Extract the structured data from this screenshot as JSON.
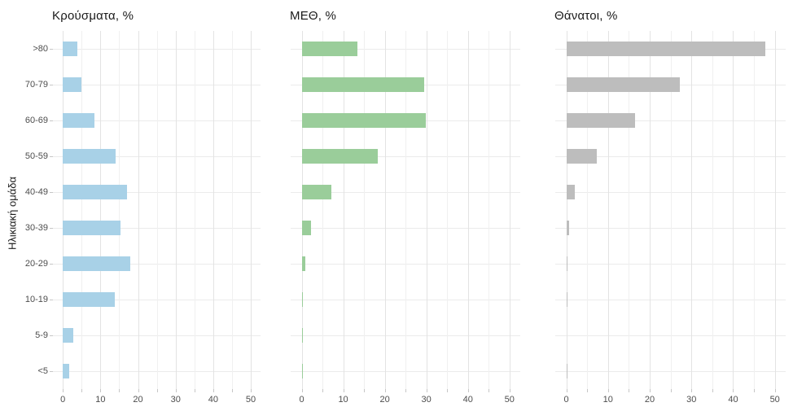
{
  "figure": {
    "y_axis_title": "Ηλικιακή ομάδα",
    "background": "#ffffff",
    "gridline_color": "#e3e3e3",
    "axis_text_color": "#4d4d4d"
  },
  "chart_data": [
    {
      "type": "bar",
      "orientation": "horizontal",
      "title": "Κρούσματα, %",
      "color": "#a8d1e7",
      "xlabel": "",
      "ylabel": "Ηλικιακή ομάδα",
      "xlim": [
        0,
        50
      ],
      "x_ticks": [
        0,
        10,
        20,
        30,
        40,
        50
      ],
      "grid": true,
      "legend": false,
      "categories": [
        ">80",
        "70-79",
        "60-69",
        "50-59",
        "40-49",
        "30-39",
        "20-29",
        "10-19",
        "5-9",
        "<5"
      ],
      "values": [
        3.8,
        5.0,
        8.5,
        14.1,
        17.1,
        15.4,
        18.0,
        13.8,
        2.7,
        1.6
      ]
    },
    {
      "type": "bar",
      "orientation": "horizontal",
      "title": "ΜΕΘ, %",
      "color": "#9acd9a",
      "xlabel": "",
      "ylabel": "Ηλικιακή ομάδα",
      "xlim": [
        0,
        50
      ],
      "x_ticks": [
        0,
        10,
        20,
        30,
        40,
        50
      ],
      "grid": true,
      "legend": false,
      "categories": [
        ">80",
        "70-79",
        "60-69",
        "50-59",
        "40-49",
        "30-39",
        "20-29",
        "10-19",
        "5-9",
        "<5"
      ],
      "values": [
        13.5,
        29.5,
        29.9,
        18.4,
        7.2,
        2.3,
        0.8,
        0.3,
        0.2,
        0.3
      ]
    },
    {
      "type": "bar",
      "orientation": "horizontal",
      "title": "Θάνατοι, %",
      "color": "#bdbdbd",
      "xlabel": "",
      "ylabel": "Ηλικιακή ομάδα",
      "xlim": [
        0,
        50
      ],
      "x_ticks": [
        0,
        10,
        20,
        30,
        40,
        50
      ],
      "grid": true,
      "legend": false,
      "categories": [
        ">80",
        "70-79",
        "60-69",
        "50-59",
        "40-49",
        "30-39",
        "20-29",
        "10-19",
        "5-9",
        "<5"
      ],
      "values": [
        47.7,
        27.3,
        16.5,
        7.3,
        2.0,
        0.6,
        0.15,
        0.15,
        0,
        0.15
      ]
    }
  ]
}
